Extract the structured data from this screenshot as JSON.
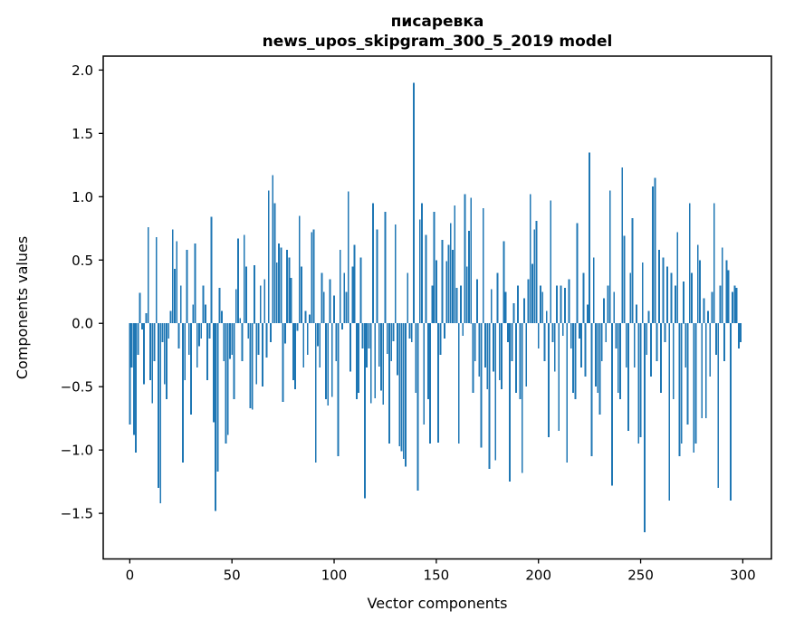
{
  "figure": {
    "title_line1": "писаревка",
    "title_line2": "news_upos_skipgram_300_5_2019 model"
  },
  "chart_data": {
    "type": "bar",
    "title": "писаревка\nnews_upos_skipgram_300_5_2019 model",
    "xlabel": "Vector components",
    "ylabel": "Components values",
    "legend": "none",
    "grid": false,
    "bar_color": "#1f77b4",
    "axis_color": "#000000",
    "n_components": 300,
    "xticks": [
      0,
      50,
      100,
      150,
      200,
      250,
      300
    ],
    "yticks": [
      2.0,
      1.5,
      1.0,
      0.5,
      0.0,
      -0.5,
      -1.0,
      -1.5
    ],
    "xlim": [
      -13,
      314
    ],
    "ylim": [
      -1.86,
      2.11
    ],
    "bar_width_fraction": 0.8,
    "values": [
      -0.8,
      -0.35,
      -0.88,
      -1.02,
      -0.25,
      0.24,
      -0.05,
      -0.48,
      0.08,
      0.76,
      -0.45,
      -0.63,
      -0.3,
      0.68,
      -1.3,
      -1.42,
      -0.15,
      -0.48,
      -0.6,
      -0.12,
      0.1,
      0.74,
      0.43,
      0.65,
      -0.2,
      0.3,
      -1.1,
      -0.45,
      0.58,
      -0.25,
      -0.72,
      0.15,
      0.63,
      -0.35,
      -0.18,
      -0.12,
      0.3,
      0.15,
      -0.45,
      -0.12,
      0.84,
      -0.78,
      -1.48,
      -1.17,
      0.28,
      0.1,
      -0.3,
      -0.95,
      -0.88,
      -0.28,
      -0.25,
      -0.6,
      0.27,
      0.67,
      0.04,
      -0.3,
      0.7,
      0.45,
      -0.12,
      -0.67,
      -0.68,
      0.46,
      -0.48,
      -0.25,
      0.3,
      -0.5,
      0.35,
      -0.27,
      1.05,
      -0.15,
      1.17,
      0.95,
      0.48,
      0.63,
      0.6,
      -0.62,
      -0.16,
      0.58,
      0.52,
      0.36,
      -0.45,
      -0.52,
      -0.06,
      0.85,
      0.45,
      -0.35,
      0.1,
      -0.25,
      0.07,
      0.72,
      0.74,
      -1.1,
      -0.18,
      -0.35,
      0.4,
      0.25,
      -0.6,
      -0.65,
      0.35,
      -0.58,
      0.22,
      -0.3,
      -1.05,
      0.58,
      -0.05,
      0.4,
      0.25,
      1.04,
      -0.38,
      0.45,
      0.62,
      -0.6,
      -0.55,
      0.52,
      -0.2,
      -1.38,
      -0.35,
      -0.2,
      -0.63,
      0.95,
      -0.59,
      0.74,
      -0.34,
      -0.53,
      -0.64,
      0.88,
      -0.24,
      -0.95,
      -0.3,
      -0.14,
      0.78,
      -0.41,
      -0.97,
      -1.01,
      -1.07,
      -1.13,
      0.4,
      -0.12,
      -0.15,
      1.9,
      -0.55,
      -1.32,
      0.82,
      0.95,
      -0.8,
      0.7,
      -0.6,
      -0.95,
      0.3,
      0.88,
      0.5,
      -0.94,
      -0.25,
      0.66,
      -0.12,
      0.49,
      0.62,
      0.79,
      0.58,
      0.93,
      0.28,
      -0.95,
      0.3,
      -0.1,
      1.02,
      0.45,
      0.73,
      0.99,
      -0.55,
      -0.3,
      0.35,
      -0.42,
      -0.98,
      0.91,
      -0.35,
      -0.52,
      -1.15,
      0.27,
      -0.38,
      -1.08,
      0.4,
      -0.45,
      -0.52,
      0.65,
      0.25,
      -0.15,
      -1.25,
      -0.3,
      0.16,
      -0.55,
      0.3,
      -0.6,
      -1.18,
      0.2,
      -0.5,
      0.35,
      1.02,
      0.47,
      0.74,
      0.81,
      -0.2,
      0.3,
      0.25,
      -0.3,
      0.1,
      -0.9,
      0.97,
      -0.15,
      -0.38,
      0.3,
      -0.85,
      0.3,
      -0.1,
      0.28,
      -1.1,
      0.35,
      -0.2,
      -0.55,
      -0.6,
      0.79,
      -0.12,
      -0.35,
      0.4,
      -0.42,
      0.15,
      1.35,
      -1.05,
      0.52,
      -0.5,
      -0.55,
      -0.72,
      -0.3,
      0.2,
      -0.15,
      0.3,
      1.05,
      -1.28,
      0.25,
      -0.2,
      -0.55,
      -0.6,
      1.23,
      0.69,
      -0.35,
      -0.85,
      0.4,
      0.83,
      -0.35,
      0.15,
      -0.95,
      -0.9,
      0.48,
      -1.65,
      -0.25,
      0.1,
      -0.42,
      1.08,
      1.15,
      -0.3,
      0.58,
      -0.55,
      0.52,
      -0.15,
      0.45,
      -1.4,
      0.4,
      -0.6,
      0.3,
      0.72,
      -1.05,
      -0.95,
      0.33,
      -0.35,
      -0.8,
      0.95,
      0.4,
      -1.02,
      -0.95,
      0.62,
      0.5,
      -0.75,
      0.2,
      -0.75,
      0.1,
      -0.42,
      0.25,
      0.95,
      -0.25,
      -1.3,
      0.3,
      0.6,
      -0.3,
      0.5,
      0.42,
      -1.4,
      0.25,
      0.3,
      0.28,
      -0.2,
      -0.15
    ]
  }
}
